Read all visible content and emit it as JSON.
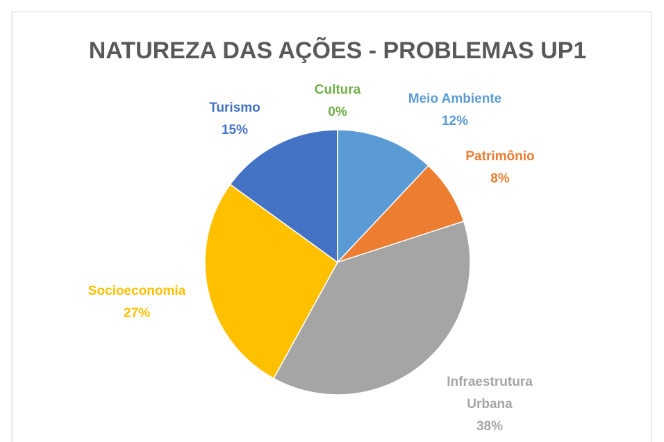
{
  "chart_data": {
    "type": "pie",
    "title": "NATUREZA DAS AÇÕES - PROBLEMAS UP1",
    "categories": [
      "Meio Ambiente",
      "Patrimônio",
      "Infraestrutura Urbana",
      "Socioeconomia",
      "Turismo",
      "Cultura"
    ],
    "values": [
      12,
      8,
      38,
      27,
      15,
      0
    ],
    "value_labels": [
      "12%",
      "8%",
      "38%",
      "27%",
      "15%",
      "0%"
    ],
    "colors": [
      "#5b9bd5",
      "#ed7d31",
      "#a5a5a5",
      "#ffc000",
      "#4472c4",
      "#70ad47"
    ]
  }
}
